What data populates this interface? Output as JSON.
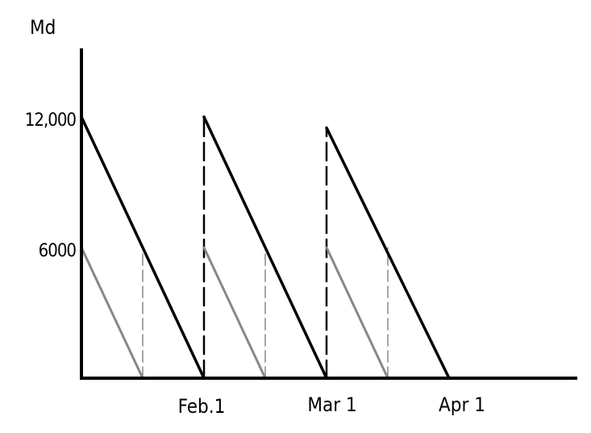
{
  "chart_data": {
    "type": "line",
    "title": "",
    "ylabel": "Md",
    "xlabel": "",
    "ylim": [
      0,
      15000
    ],
    "y_ticks": [
      {
        "label": "12,000",
        "value": 12000
      },
      {
        "label": "6000",
        "value": 6000
      }
    ],
    "x_ticks": [
      "Feb.1",
      "Mar 1",
      "Apr 1"
    ],
    "x_tick_positions": [
      1,
      2,
      3
    ],
    "series": [
      {
        "style": "solid",
        "color": "#000000",
        "segments": [
          [
            [
              0,
              12000
            ],
            [
              1,
              0
            ]
          ],
          [
            [
              1,
              12000
            ],
            [
              2,
              0
            ]
          ],
          [
            [
              2,
              11500
            ],
            [
              3,
              0
            ]
          ]
        ]
      },
      {
        "style": "solid",
        "color": "#888888",
        "segments": [
          [
            [
              0,
              6000
            ],
            [
              0.5,
              0
            ]
          ],
          [
            [
              0.5,
              6000
            ],
            [
              1,
              0
            ]
          ],
          [
            [
              1,
              6000
            ],
            [
              1.5,
              0
            ]
          ],
          [
            [
              1.5,
              6000
            ],
            [
              2,
              0
            ]
          ],
          [
            [
              2,
              6000
            ],
            [
              2.5,
              0
            ]
          ]
        ]
      },
      {
        "style": "dashed",
        "color": "#000000",
        "verticals": [
          {
            "x": 1,
            "from": 0,
            "to": 12000
          },
          {
            "x": 2,
            "from": 0,
            "to": 11500
          }
        ]
      },
      {
        "style": "dashed",
        "color": "#888888",
        "verticals": [
          {
            "x": 0.5,
            "from": 0,
            "to": 6000
          },
          {
            "x": 1.5,
            "from": 0,
            "to": 6000
          },
          {
            "x": 2.5,
            "from": 0,
            "to": 6000
          }
        ]
      }
    ]
  }
}
